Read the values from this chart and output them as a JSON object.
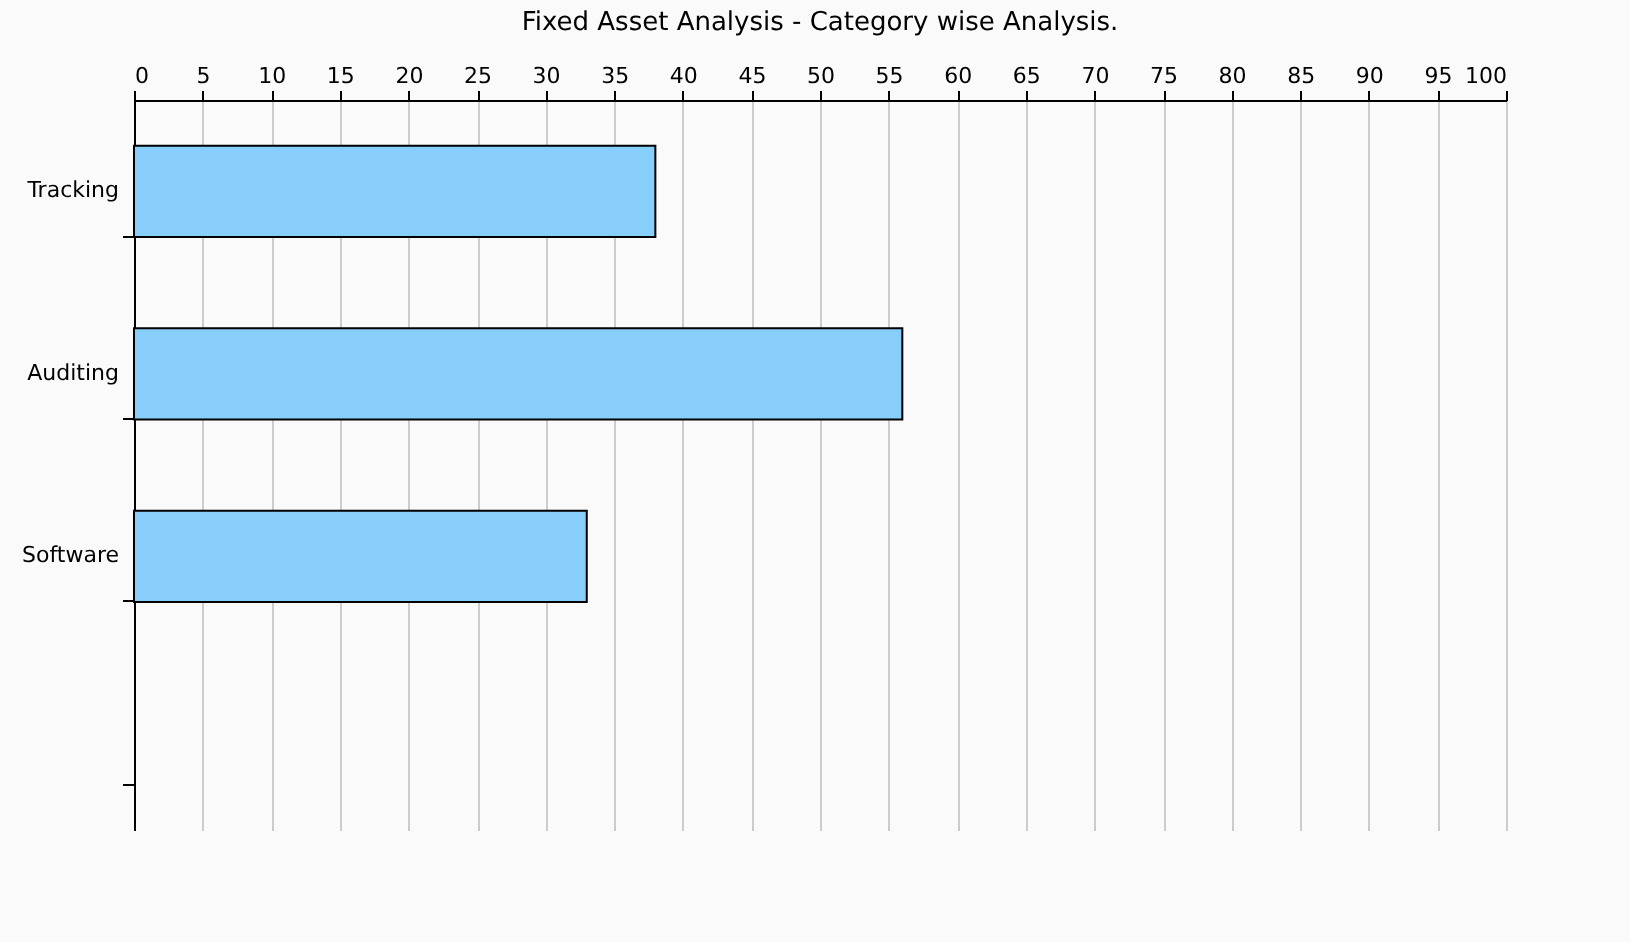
{
  "chart_data": {
    "type": "bar",
    "orientation": "horizontal",
    "title": "Fixed Asset Analysis - Category wise Analysis.",
    "categories": [
      "Tracking",
      "Auditing",
      "Software",
      null
    ],
    "values": [
      38,
      56,
      33,
      null
    ],
    "color": "#87cefa",
    "xlim": [
      0,
      100
    ],
    "xticks": [
      0,
      5,
      10,
      15,
      20,
      25,
      30,
      35,
      40,
      45,
      50,
      55,
      60,
      65,
      70,
      75,
      80,
      85,
      90,
      95,
      100
    ],
    "grid": "x"
  }
}
